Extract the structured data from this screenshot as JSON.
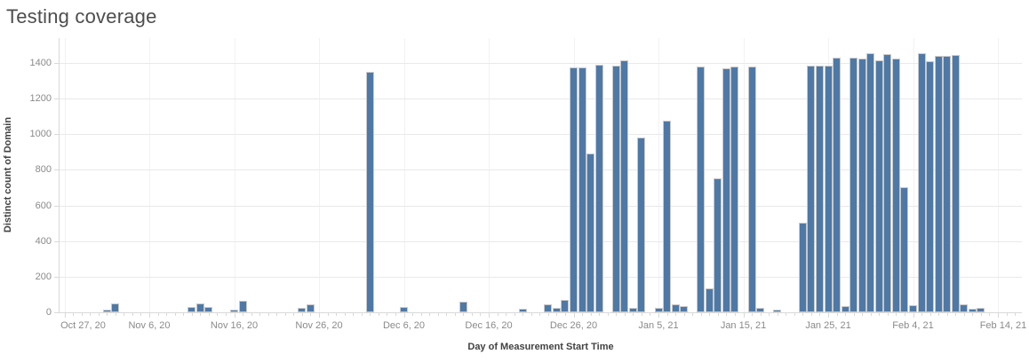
{
  "title": "Testing coverage",
  "colors": {
    "bar": "#4e79a7",
    "bar_border": "#c9c9c9",
    "grid_line": "#e9e9e9",
    "axis_line": "#d9d9d9",
    "tick_label": "#8a8a8a",
    "axis_title": "#424242",
    "chart_title": "#4d4d4d"
  },
  "y_axis": {
    "title": "Distinct count of Domain",
    "tick_values": [
      0,
      200,
      400,
      600,
      800,
      1000,
      1200,
      1400
    ],
    "tick_labels": [
      "0",
      "200",
      "400",
      "600",
      "800",
      "1000",
      "1200",
      "1400"
    ]
  },
  "x_axis": {
    "title": "Day of Measurement Start Time",
    "ticks": [
      {
        "day": 0,
        "label": "Oct 27, 20"
      },
      {
        "day": 10,
        "label": "Nov 6, 20"
      },
      {
        "day": 20,
        "label": "Nov 16, 20"
      },
      {
        "day": 30,
        "label": "Nov 26, 20"
      },
      {
        "day": 40,
        "label": "Dec 6, 20"
      },
      {
        "day": 50,
        "label": "Dec 16, 20"
      },
      {
        "day": 60,
        "label": "Dec 26, 20"
      },
      {
        "day": 70,
        "label": "Jan 5, 21"
      },
      {
        "day": 80,
        "label": "Jan 15, 21"
      },
      {
        "day": 90,
        "label": "Jan 25, 21"
      },
      {
        "day": 100,
        "label": "Feb 4, 21"
      },
      {
        "day": 110,
        "label": "Feb 14, 21"
      }
    ]
  },
  "chart_data": {
    "type": "bar",
    "title": "Testing coverage",
    "xlabel": "Day of Measurement Start Time",
    "ylabel": "Distinct count of Domain",
    "ylim": [
      0,
      1450
    ],
    "x_range": [
      "Oct 27, 20",
      "Feb 14, 21"
    ],
    "x_unit": "day (day 0 = Oct 27, 2020)",
    "grid": "horizontal",
    "legend": "none",
    "points": [
      {
        "day": 5,
        "date": "Nov 1, 20",
        "value": 5
      },
      {
        "day": 6,
        "date": "Nov 2, 20",
        "value": 40
      },
      {
        "day": 15,
        "date": "Nov 11, 20",
        "value": 20
      },
      {
        "day": 16,
        "date": "Nov 12, 20",
        "value": 40
      },
      {
        "day": 17,
        "date": "Nov 13, 20",
        "value": 20
      },
      {
        "day": 20,
        "date": "Nov 16, 20",
        "value": 5
      },
      {
        "day": 21,
        "date": "Nov 17, 20",
        "value": 55
      },
      {
        "day": 28,
        "date": "Nov 24, 20",
        "value": 15
      },
      {
        "day": 29,
        "date": "Nov 25, 20",
        "value": 35
      },
      {
        "day": 36,
        "date": "Dec 2, 20",
        "value": 1340
      },
      {
        "day": 40,
        "date": "Dec 6, 20",
        "value": 20
      },
      {
        "day": 47,
        "date": "Dec 13, 20",
        "value": 50
      },
      {
        "day": 54,
        "date": "Dec 20, 20",
        "value": 8
      },
      {
        "day": 57,
        "date": "Dec 23, 20",
        "value": 35
      },
      {
        "day": 58,
        "date": "Dec 24, 20",
        "value": 15
      },
      {
        "day": 59,
        "date": "Dec 25, 20",
        "value": 60
      },
      {
        "day": 60,
        "date": "Dec 26, 20",
        "value": 1365
      },
      {
        "day": 61,
        "date": "Dec 27, 20",
        "value": 1365
      },
      {
        "day": 62,
        "date": "Dec 28, 20",
        "value": 880
      },
      {
        "day": 63,
        "date": "Dec 29, 20",
        "value": 1380
      },
      {
        "day": 65,
        "date": "Dec 31, 20",
        "value": 1375
      },
      {
        "day": 66,
        "date": "Jan 1, 21",
        "value": 1405
      },
      {
        "day": 67,
        "date": "Jan 2, 21",
        "value": 15
      },
      {
        "day": 68,
        "date": "Jan 3, 21",
        "value": 970
      },
      {
        "day": 70,
        "date": "Jan 5, 21",
        "value": 15
      },
      {
        "day": 71,
        "date": "Jan 6, 21",
        "value": 1065
      },
      {
        "day": 72,
        "date": "Jan 7, 21",
        "value": 35
      },
      {
        "day": 73,
        "date": "Jan 8, 21",
        "value": 25
      },
      {
        "day": 75,
        "date": "Jan 10, 21",
        "value": 1370
      },
      {
        "day": 76,
        "date": "Jan 11, 21",
        "value": 125
      },
      {
        "day": 77,
        "date": "Jan 12, 21",
        "value": 740
      },
      {
        "day": 78,
        "date": "Jan 13, 21",
        "value": 1360
      },
      {
        "day": 79,
        "date": "Jan 14, 21",
        "value": 1370
      },
      {
        "day": 81,
        "date": "Jan 16, 21",
        "value": 1370
      },
      {
        "day": 82,
        "date": "Jan 17, 21",
        "value": 15
      },
      {
        "day": 84,
        "date": "Jan 19, 21",
        "value": 5
      },
      {
        "day": 87,
        "date": "Jan 22, 21",
        "value": 495
      },
      {
        "day": 88,
        "date": "Jan 23, 21",
        "value": 1375
      },
      {
        "day": 89,
        "date": "Jan 24, 21",
        "value": 1375
      },
      {
        "day": 90,
        "date": "Jan 25, 21",
        "value": 1375
      },
      {
        "day": 91,
        "date": "Jan 26, 21",
        "value": 1420
      },
      {
        "day": 92,
        "date": "Jan 27, 21",
        "value": 25
      },
      {
        "day": 93,
        "date": "Jan 28, 21",
        "value": 1420
      },
      {
        "day": 94,
        "date": "Jan 29, 21",
        "value": 1415
      },
      {
        "day": 95,
        "date": "Jan 30, 21",
        "value": 1445
      },
      {
        "day": 96,
        "date": "Jan 31, 21",
        "value": 1405
      },
      {
        "day": 97,
        "date": "Feb 1, 21",
        "value": 1440
      },
      {
        "day": 98,
        "date": "Feb 2, 21",
        "value": 1415
      },
      {
        "day": 99,
        "date": "Feb 3, 21",
        "value": 695
      },
      {
        "day": 100,
        "date": "Feb 4, 21",
        "value": 30
      },
      {
        "day": 101,
        "date": "Feb 5, 21",
        "value": 1445
      },
      {
        "day": 102,
        "date": "Feb 6, 21",
        "value": 1400
      },
      {
        "day": 103,
        "date": "Feb 7, 21",
        "value": 1430
      },
      {
        "day": 104,
        "date": "Feb 8, 21",
        "value": 1430
      },
      {
        "day": 105,
        "date": "Feb 9, 21",
        "value": 1435
      },
      {
        "day": 106,
        "date": "Feb 10, 21",
        "value": 35
      },
      {
        "day": 107,
        "date": "Feb 11, 21",
        "value": 10
      },
      {
        "day": 108,
        "date": "Feb 12, 21",
        "value": 15
      }
    ]
  }
}
